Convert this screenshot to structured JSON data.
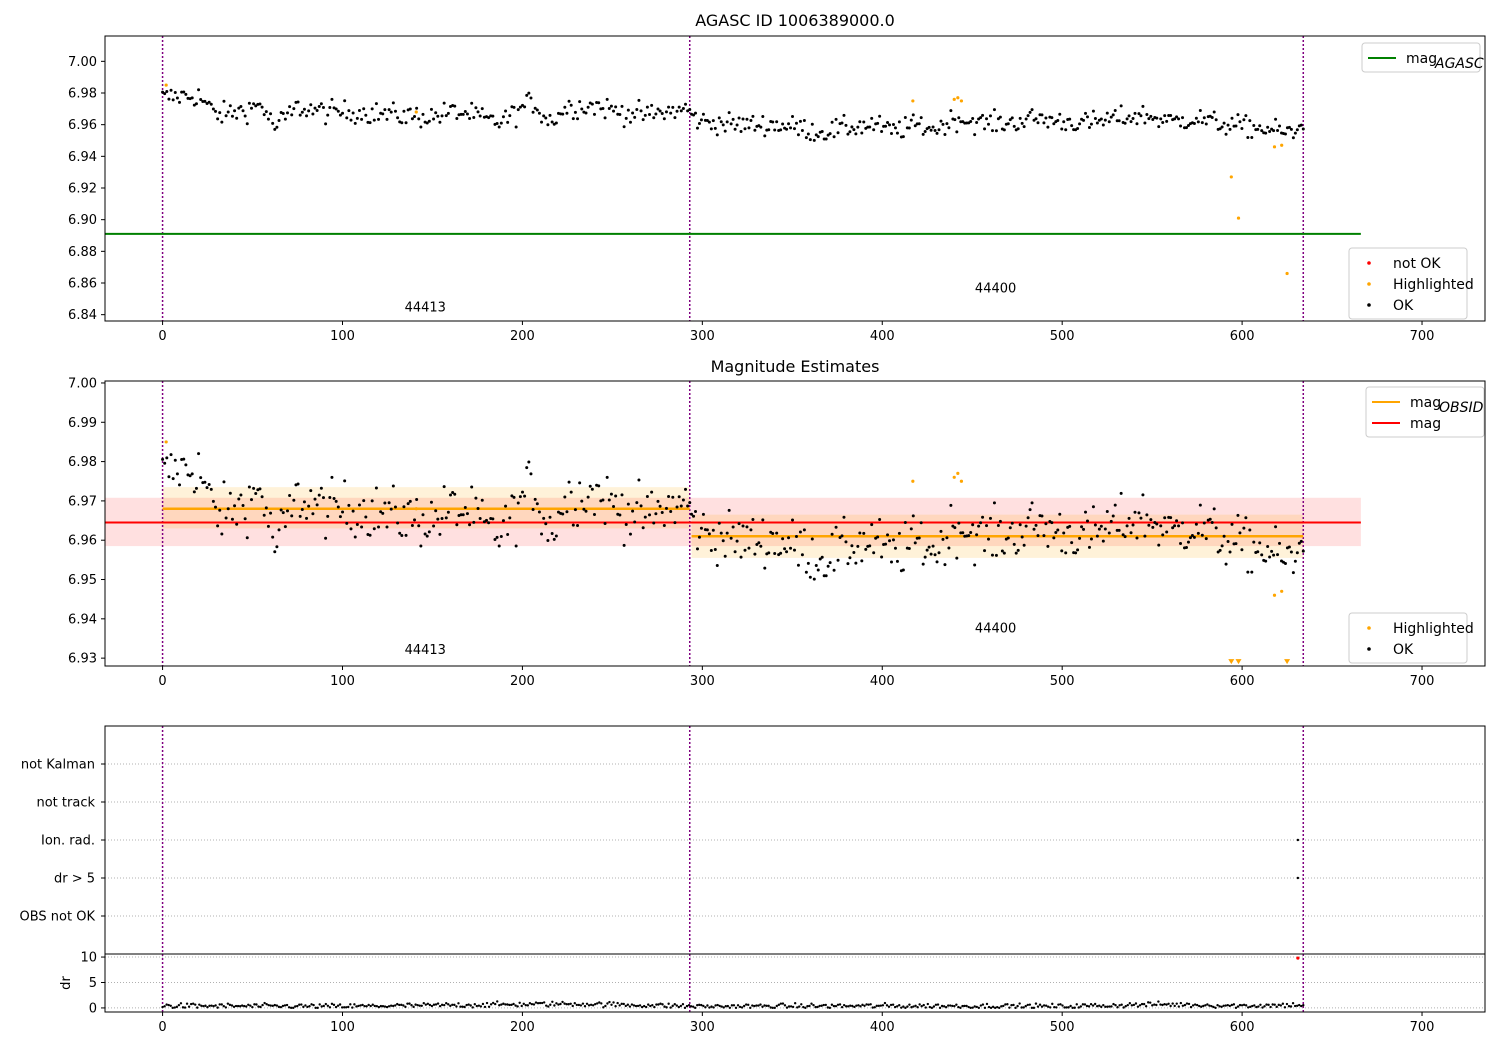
{
  "chart_data": [
    {
      "type": "scatter",
      "title": "AGASC ID 1006389000.0",
      "xlim": [
        -32,
        735
      ],
      "ylim": [
        6.836,
        7.016
      ],
      "x_ticks": [
        0,
        100,
        200,
        300,
        400,
        500,
        600,
        700
      ],
      "y_ticks": [
        "6.84",
        "6.86",
        "6.88",
        "6.90",
        "6.92",
        "6.94",
        "6.96",
        "6.98",
        "7.00"
      ],
      "vlines": [
        0,
        293,
        634
      ],
      "grid": false,
      "reference_line": {
        "label": "mag",
        "label_sub": "AGASC",
        "value": 6.891,
        "x_range": [
          -32,
          666
        ],
        "color": "#008000"
      },
      "legend_top": {
        "placement": "top-right",
        "entries": [
          {
            "label": "mag",
            "sub": "AGASC",
            "color": "#008000",
            "kind": "line"
          }
        ]
      },
      "legend_bottom": {
        "placement": "lower-right",
        "entries": [
          {
            "label": "not OK",
            "color": "#ff0000",
            "kind": "point"
          },
          {
            "label": "Highlighted",
            "color": "#ffa500",
            "kind": "point"
          },
          {
            "label": "OK",
            "color": "#000000",
            "kind": "point"
          }
        ]
      },
      "obsid_labels": [
        {
          "text": "44413",
          "x": 146,
          "y": 6.842
        },
        {
          "text": "44400",
          "x": 463,
          "y": 6.854
        }
      ],
      "series": [
        {
          "name": "OK",
          "color": "#000000",
          "segments": [
            {
              "x_range": [
                0,
                293
              ],
              "knots": [
                [
                  0,
                  6.977
                ],
                [
                  10,
                  6.978
                ],
                [
                  20,
                  6.978
                ],
                [
                  30,
                  6.966
                ],
                [
                  45,
                  6.969
                ],
                [
                  55,
                  6.973
                ],
                [
                  62,
                  6.958
                ],
                [
                  75,
                  6.971
                ],
                [
                  90,
                  6.968
                ],
                [
                  110,
                  6.968
                ],
                [
                  130,
                  6.966
                ],
                [
                  150,
                  6.965
                ],
                [
                  160,
                  6.968
                ],
                [
                  170,
                  6.967
                ],
                [
                  185,
                  6.961
                ],
                [
                  195,
                  6.966
                ],
                [
                  205,
                  6.975
                ],
                [
                  215,
                  6.962
                ],
                [
                  225,
                  6.971
                ],
                [
                  240,
                  6.972
                ],
                [
                  255,
                  6.968
                ],
                [
                  270,
                  6.966
                ],
                [
                  280,
                  6.968
                ],
                [
                  293,
                  6.97
                ]
              ],
              "jitter": 0.0035,
              "n": 250
            },
            {
              "x_range": [
                294,
                634
              ],
              "knots": [
                [
                  294,
                  6.965
                ],
                [
                  300,
                  6.962
                ],
                [
                  320,
                  6.96
                ],
                [
                  340,
                  6.96
                ],
                [
                  355,
                  6.958
                ],
                [
                  365,
                  6.955
                ],
                [
                  380,
                  6.958
                ],
                [
                  395,
                  6.96
                ],
                [
                  405,
                  6.956
                ],
                [
                  420,
                  6.96
                ],
                [
                  430,
                  6.957
                ],
                [
                  440,
                  6.964
                ],
                [
                  455,
                  6.961
                ],
                [
                  470,
                  6.961
                ],
                [
                  485,
                  6.964
                ],
                [
                  500,
                  6.962
                ],
                [
                  515,
                  6.961
                ],
                [
                  530,
                  6.964
                ],
                [
                  545,
                  6.966
                ],
                [
                  560,
                  6.962
                ],
                [
                  575,
                  6.964
                ],
                [
                  590,
                  6.96
                ],
                [
                  600,
                  6.959
                ],
                [
                  615,
                  6.957
                ],
                [
                  630,
                  6.954
                ],
                [
                  634,
                  6.962
                ]
              ],
              "jitter": 0.0033,
              "n": 310
            }
          ]
        },
        {
          "name": "Highlighted",
          "color": "#ffa500",
          "points": [
            [
              2,
              6.985
            ],
            [
              141,
              6.968
            ],
            [
              417,
              6.975
            ],
            [
              440,
              6.976
            ],
            [
              442,
              6.977
            ],
            [
              444,
              6.975
            ],
            [
              594,
              6.927
            ],
            [
              598,
              6.901
            ],
            [
              618,
              6.946
            ],
            [
              622,
              6.947
            ],
            [
              625,
              6.866
            ]
          ]
        }
      ]
    },
    {
      "type": "scatter",
      "title": "Magnitude Estimates",
      "xlim": [
        -32,
        735
      ],
      "ylim": [
        6.928,
        7.0005
      ],
      "x_ticks": [
        0,
        100,
        200,
        300,
        400,
        500,
        600,
        700
      ],
      "y_ticks": [
        "6.93",
        "6.94",
        "6.95",
        "6.96",
        "6.97",
        "6.98",
        "6.99",
        "7.00"
      ],
      "vlines": [
        0,
        293,
        634
      ],
      "grid": false,
      "mag": {
        "label": "mag",
        "value": 6.9645,
        "band": [
          6.9585,
          6.9708
        ],
        "x_range": [
          -32,
          666
        ],
        "color": "#ff0000"
      },
      "mag_obsid": [
        {
          "x_range": [
            0,
            293
          ],
          "value": 6.968,
          "band": [
            6.963,
            6.9735
          ]
        },
        {
          "x_range": [
            294,
            634
          ],
          "value": 6.961,
          "band": [
            6.9555,
            6.9665
          ]
        }
      ],
      "legend_top": {
        "placement": "top-right",
        "entries": [
          {
            "label": "mag",
            "sub": "OBSID",
            "color": "#ffa500",
            "kind": "line"
          },
          {
            "label": "mag",
            "sub": "",
            "color": "#ff0000",
            "kind": "line"
          }
        ]
      },
      "legend_bottom": {
        "placement": "lower-right",
        "entries": [
          {
            "label": "Highlighted",
            "color": "#ffa500",
            "kind": "point"
          },
          {
            "label": "OK",
            "color": "#000000",
            "kind": "point"
          }
        ]
      },
      "obsid_labels": [
        {
          "text": "44413",
          "x": 146,
          "y": 6.931
        },
        {
          "text": "44400",
          "x": 463,
          "y": 6.9365
        }
      ],
      "series": [
        {
          "name": "OK",
          "color": "#000000",
          "same_as_panel": 0
        },
        {
          "name": "Highlighted",
          "color": "#ffa500",
          "points": [
            [
              2,
              6.985
            ],
            [
              141,
              6.968
            ],
            [
              417,
              6.975
            ],
            [
              440,
              6.976
            ],
            [
              442,
              6.977
            ],
            [
              444,
              6.975
            ],
            [
              618,
              6.946
            ],
            [
              622,
              6.947
            ]
          ]
        },
        {
          "name": "Highlighted (below axis)",
          "color": "#ffa500",
          "marker": "triangle-down",
          "points": [
            [
              594,
              6.929
            ],
            [
              598,
              6.929
            ],
            [
              625,
              6.929
            ]
          ]
        }
      ]
    },
    {
      "type": "scatter",
      "title": "",
      "xlim": [
        -32,
        735
      ],
      "categories": [
        "OBS not OK",
        "dr > 5",
        "Ion. rad.",
        "not track",
        "not Kalman"
      ],
      "vlines": [
        0,
        293,
        634
      ],
      "grid": true,
      "flags": [
        {
          "category": "Ion. rad.",
          "x": 631
        },
        {
          "category": "dr > 5",
          "x": 631
        }
      ]
    },
    {
      "type": "scatter",
      "title": "",
      "ylabel": "dr",
      "xlim": [
        -32,
        735
      ],
      "ylim": [
        -0.8,
        10.6
      ],
      "x_ticks": [
        0,
        100,
        200,
        300,
        400,
        500,
        600,
        700
      ],
      "y_ticks": [
        "0",
        "5",
        "10"
      ],
      "vlines": [
        0,
        293,
        634
      ],
      "grid": true,
      "series": [
        {
          "name": "OK",
          "color": "#000000",
          "knots": [
            [
              0,
              0.4
            ],
            [
              100,
              0.3
            ],
            [
              200,
              0.7
            ],
            [
              230,
              0.8
            ],
            [
              300,
              0.3
            ],
            [
              400,
              0.4
            ],
            [
              500,
              0.3
            ],
            [
              555,
              0.7
            ],
            [
              600,
              0.4
            ],
            [
              634,
              0.6
            ]
          ],
          "jitter": 0.25,
          "n": 560
        },
        {
          "name": "not OK",
          "color": "#ff0000",
          "points": [
            [
              631,
              9.8
            ]
          ]
        }
      ]
    }
  ]
}
